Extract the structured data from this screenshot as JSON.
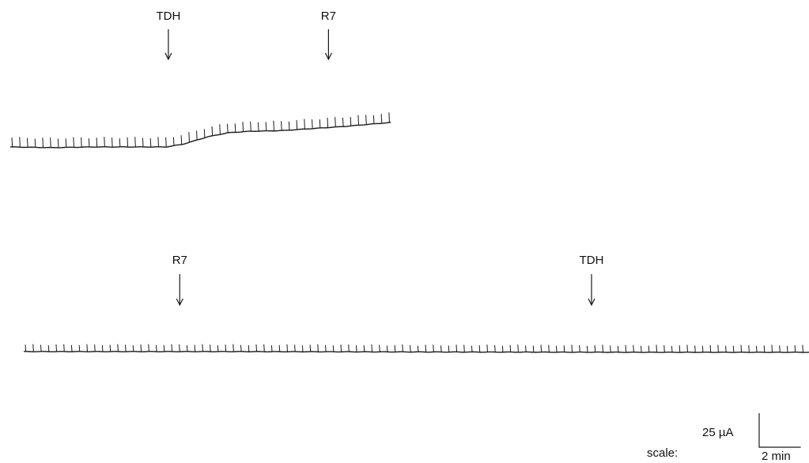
{
  "chart_data": [
    {
      "type": "line",
      "name": "trace-1",
      "x_unit": "min",
      "y_unit": "µA",
      "events": [
        {
          "label": "TDH",
          "t": 7.6
        },
        {
          "label": "R7",
          "t": 15.3
        }
      ],
      "baseline": [
        {
          "t": 0,
          "y": 0
        },
        {
          "t": 2,
          "y": -0.5
        },
        {
          "t": 4,
          "y": 0
        },
        {
          "t": 6,
          "y": 0
        },
        {
          "t": 7.5,
          "y": 0
        },
        {
          "t": 8.3,
          "y": 2
        },
        {
          "t": 9.5,
          "y": 7.5
        },
        {
          "t": 10.5,
          "y": 10.5
        },
        {
          "t": 11.5,
          "y": 11.5
        },
        {
          "t": 13,
          "y": 12
        },
        {
          "t": 14.5,
          "y": 13.5
        },
        {
          "t": 16,
          "y": 15
        },
        {
          "t": 17.5,
          "y": 17
        },
        {
          "t": 18.3,
          "y": 18
        }
      ],
      "pulse_interval": 0.37,
      "pulse_amplitude": 7.5,
      "duration": 18.3
    },
    {
      "type": "line",
      "name": "trace-2",
      "x_unit": "min",
      "y_unit": "µA",
      "events": [
        {
          "label": "R7",
          "t": 7.5
        },
        {
          "label": "TDH",
          "t": 27.3
        }
      ],
      "baseline": [
        {
          "t": 0,
          "y": 0
        },
        {
          "t": 10,
          "y": 0
        },
        {
          "t": 20,
          "y": -0.3
        },
        {
          "t": 30,
          "y": -0.5
        },
        {
          "t": 39,
          "y": -0.5
        }
      ],
      "pulse_interval": 0.37,
      "pulse_amplitude": 5.5,
      "duration": 39
    }
  ],
  "scale": {
    "prefix": "scale:",
    "y_label": "25 µA",
    "x_label": "2 min",
    "y_value": 25,
    "x_value": 2
  }
}
